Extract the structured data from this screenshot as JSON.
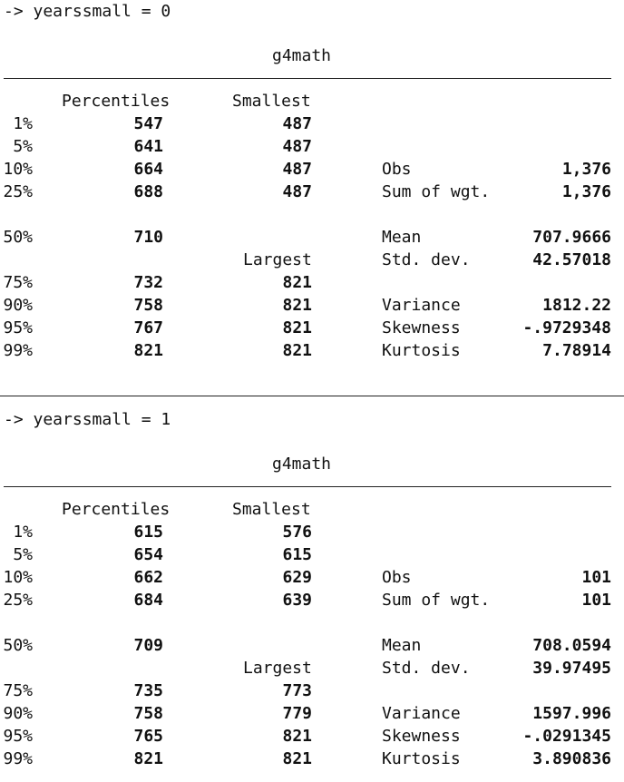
{
  "blocks": [
    {
      "header": "-> yearssmall = 0",
      "variable": "g4math",
      "col_percentiles": "Percentiles",
      "col_smallest": "Smallest",
      "col_largest": "Largest",
      "rows": [
        {
          "pct": "1%",
          "p": "547",
          "s": "487"
        },
        {
          "pct": "5%",
          "p": "641",
          "s": "487"
        },
        {
          "pct": "10%",
          "p": "664",
          "s": "487",
          "stat": "Obs",
          "val": "1,376"
        },
        {
          "pct": "25%",
          "p": "688",
          "s": "487",
          "stat": "Sum of wgt.",
          "val": "1,376"
        },
        {
          "pct": "50%",
          "p": "710",
          "stat": "Mean",
          "val": "707.9666"
        },
        {
          "stat": "Std. dev.",
          "val": "42.57018"
        },
        {
          "pct": "75%",
          "p": "732",
          "s": "821"
        },
        {
          "pct": "90%",
          "p": "758",
          "s": "821",
          "stat": "Variance",
          "val": "1812.22"
        },
        {
          "pct": "95%",
          "p": "767",
          "s": "821",
          "stat": "Skewness",
          "val": "-.9729348"
        },
        {
          "pct": "99%",
          "p": "821",
          "s": "821",
          "stat": "Kurtosis",
          "val": "7.78914"
        }
      ]
    },
    {
      "header": "-> yearssmall = 1",
      "variable": "g4math",
      "col_percentiles": "Percentiles",
      "col_smallest": "Smallest",
      "col_largest": "Largest",
      "rows": [
        {
          "pct": "1%",
          "p": "615",
          "s": "576"
        },
        {
          "pct": "5%",
          "p": "654",
          "s": "615"
        },
        {
          "pct": "10%",
          "p": "662",
          "s": "629",
          "stat": "Obs",
          "val": "101"
        },
        {
          "pct": "25%",
          "p": "684",
          "s": "639",
          "stat": "Sum of wgt.",
          "val": "101"
        },
        {
          "pct": "50%",
          "p": "709",
          "stat": "Mean",
          "val": "708.0594"
        },
        {
          "stat": "Std. dev.",
          "val": "39.97495"
        },
        {
          "pct": "75%",
          "p": "735",
          "s": "773"
        },
        {
          "pct": "90%",
          "p": "758",
          "s": "779",
          "stat": "Variance",
          "val": "1597.996"
        },
        {
          "pct": "95%",
          "p": "765",
          "s": "821",
          "stat": "Skewness",
          "val": "-.0291345"
        },
        {
          "pct": "99%",
          "p": "821",
          "s": "821",
          "stat": "Kurtosis",
          "val": "3.890836"
        }
      ]
    }
  ]
}
